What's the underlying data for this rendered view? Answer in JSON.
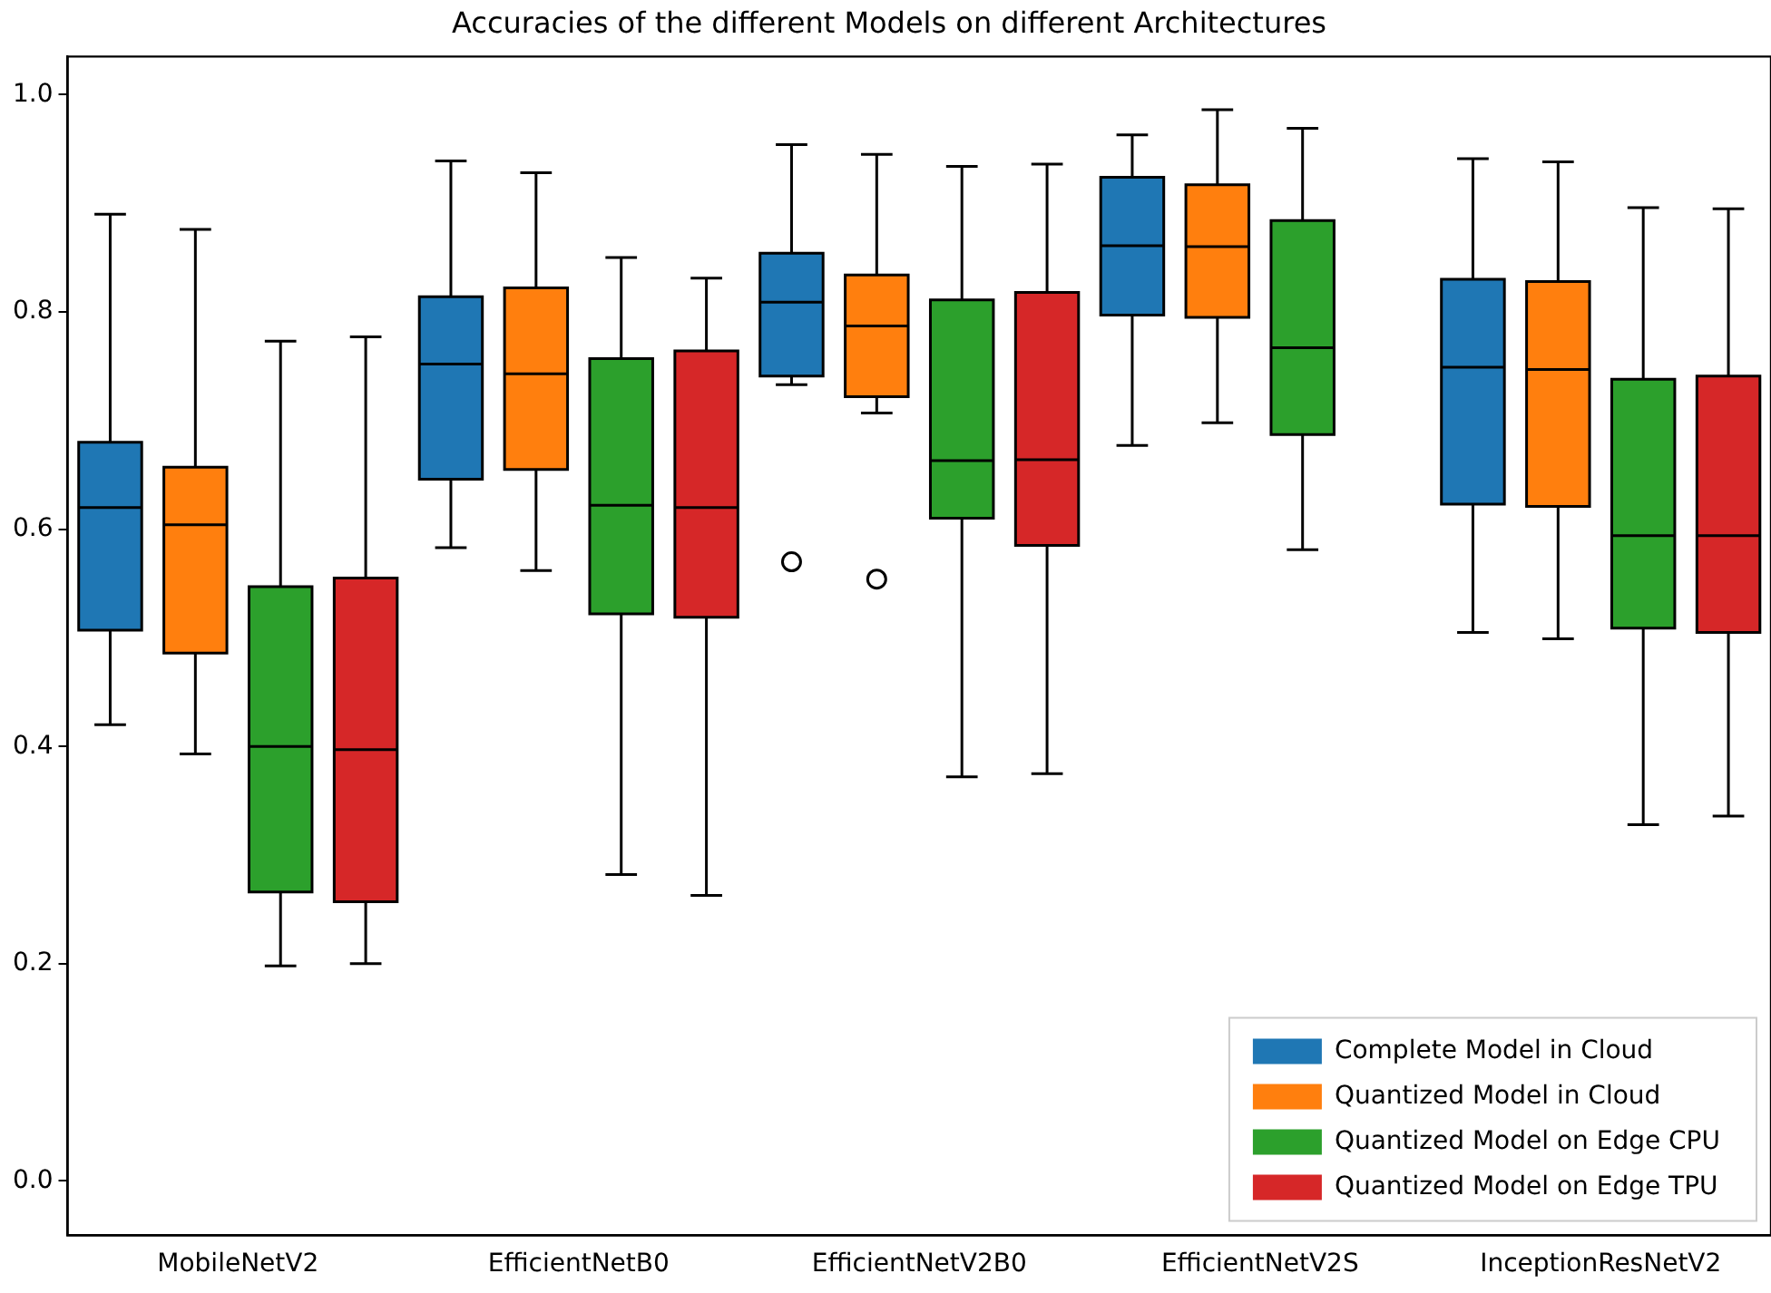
{
  "chart_data": {
    "type": "box",
    "title": "Accuracies of the different Models on different Architectures",
    "categories": [
      "MobileNetV2",
      "EfficientNetB0",
      "EfficientNetV2B0",
      "EfficientNetV2S",
      "InceptionResNetV2"
    ],
    "ylim": [
      -0.05,
      1.035
    ],
    "yticks": [
      {
        "value": 0,
        "label": "0.0"
      },
      0.2,
      0.4,
      0.6,
      0.8,
      {
        "value": 1,
        "label": "1.0"
      }
    ],
    "grid": false,
    "legend": "bottom right",
    "series": [
      {
        "name": "Complete Model in Cloud",
        "color": "#1f77b4",
        "boxes": [
          {
            "low": 0.42,
            "q1": 0.507,
            "median": 0.62,
            "q3": 0.68,
            "high": 0.89
          },
          {
            "low": 0.583,
            "q1": 0.646,
            "median": 0.752,
            "q3": 0.814,
            "high": 0.939
          },
          {
            "low": 0.733,
            "q1": 0.741,
            "median": 0.809,
            "q3": 0.854,
            "high": 0.954,
            "outliers": [
              0.57
            ]
          },
          {
            "low": 0.677,
            "q1": 0.797,
            "median": 0.861,
            "q3": 0.924,
            "high": 0.963
          },
          {
            "low": 0.505,
            "q1": 0.623,
            "median": 0.749,
            "q3": 0.83,
            "high": 0.941
          }
        ]
      },
      {
        "name": "Quantized Model in Cloud",
        "color": "#ff7f0e",
        "boxes": [
          {
            "low": 0.393,
            "q1": 0.486,
            "median": 0.604,
            "q3": 0.657,
            "high": 0.876
          },
          {
            "low": 0.562,
            "q1": 0.655,
            "median": 0.743,
            "q3": 0.822,
            "high": 0.928
          },
          {
            "low": 0.707,
            "q1": 0.722,
            "median": 0.787,
            "q3": 0.834,
            "high": 0.945,
            "outliers": [
              0.554
            ]
          },
          {
            "low": 0.698,
            "q1": 0.795,
            "median": 0.86,
            "q3": 0.917,
            "high": 0.986
          },
          {
            "low": 0.499,
            "q1": 0.621,
            "median": 0.747,
            "q3": 0.828,
            "high": 0.938
          }
        ]
      },
      {
        "name": "Quantized Model on Edge CPU",
        "color": "#2ca02c",
        "boxes": [
          {
            "low": 0.198,
            "q1": 0.266,
            "median": 0.4,
            "q3": 0.547,
            "high": 0.773
          },
          {
            "low": 0.282,
            "q1": 0.522,
            "median": 0.622,
            "q3": 0.757,
            "high": 0.85
          },
          {
            "low": 0.372,
            "q1": 0.61,
            "median": 0.663,
            "q3": 0.811,
            "high": 0.934
          },
          {
            "low": 0.581,
            "q1": 0.687,
            "median": 0.767,
            "q3": 0.884,
            "high": 0.969
          },
          {
            "low": 0.328,
            "q1": 0.509,
            "median": 0.594,
            "q3": 0.738,
            "high": 0.896
          }
        ]
      },
      {
        "name": "Quantized Model on Edge TPU",
        "color": "#d62728",
        "boxes": [
          {
            "low": 0.2,
            "q1": 0.257,
            "median": 0.397,
            "q3": 0.555,
            "high": 0.777
          },
          {
            "low": 0.263,
            "q1": 0.519,
            "median": 0.62,
            "q3": 0.764,
            "high": 0.831
          },
          {
            "low": 0.375,
            "q1": 0.585,
            "median": 0.664,
            "q3": 0.818,
            "high": 0.936
          },
          null,
          {
            "low": 0.336,
            "q1": 0.505,
            "median": 0.594,
            "q3": 0.741,
            "high": 0.895
          }
        ]
      }
    ]
  }
}
